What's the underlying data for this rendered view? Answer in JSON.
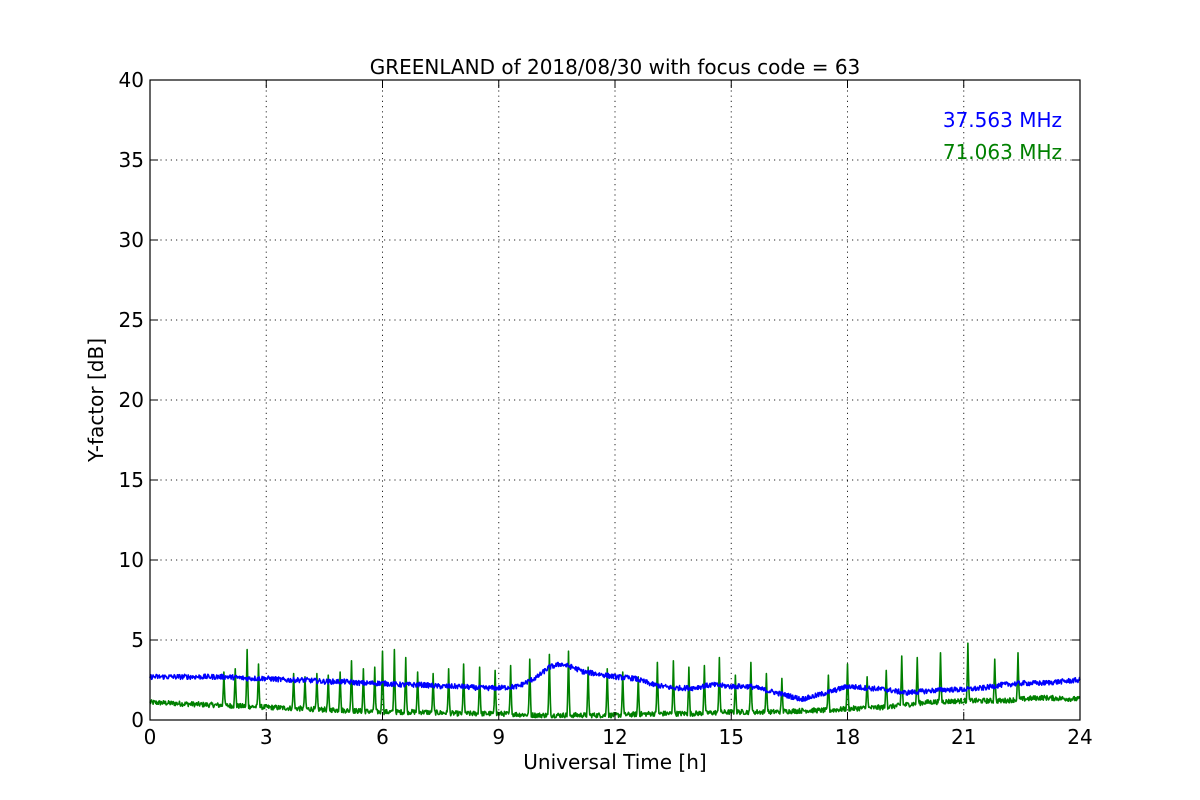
{
  "chart_data": {
    "type": "line",
    "title": "GREENLAND of 2018/08/30 with focus code = 63",
    "xlabel": "Universal Time [h]",
    "ylabel": "Y-factor [dB]",
    "xlim": [
      0,
      24
    ],
    "ylim": [
      0,
      40
    ],
    "xticks": [
      0,
      3,
      6,
      9,
      12,
      15,
      18,
      21,
      24
    ],
    "yticks": [
      0,
      5,
      10,
      15,
      20,
      25,
      30,
      35,
      40
    ],
    "grid": true,
    "legend_position": "top-right",
    "series": [
      {
        "name": "37.563 MHz",
        "color": "#0000ff",
        "x": [
          0,
          0.5,
          1,
          1.5,
          2,
          2.5,
          3,
          3.5,
          4,
          4.5,
          5,
          5.5,
          6,
          6.5,
          7,
          7.5,
          8,
          8.5,
          9,
          9.5,
          10,
          10.3,
          10.6,
          10.9,
          11.2,
          11.5,
          12,
          12.5,
          13,
          13.5,
          14,
          14.5,
          15,
          15.5,
          16,
          16.5,
          16.8,
          17,
          17.3,
          17.6,
          18,
          18.5,
          19,
          19.5,
          20,
          20.5,
          21,
          21.5,
          22,
          22.5,
          23,
          23.5,
          24
        ],
        "y": [
          2.7,
          2.7,
          2.7,
          2.7,
          2.7,
          2.6,
          2.6,
          2.5,
          2.5,
          2.4,
          2.4,
          2.3,
          2.3,
          2.2,
          2.2,
          2.1,
          2.1,
          2.0,
          2.0,
          2.1,
          2.7,
          3.3,
          3.5,
          3.3,
          3.0,
          2.9,
          2.7,
          2.6,
          2.2,
          2.0,
          2.0,
          2.2,
          2.1,
          2.1,
          1.8,
          1.5,
          1.3,
          1.4,
          1.6,
          1.8,
          2.1,
          2.0,
          1.9,
          1.7,
          1.8,
          1.9,
          1.9,
          2.0,
          2.2,
          2.3,
          2.3,
          2.4,
          2.5
        ]
      },
      {
        "name": "71.063 MHz",
        "color": "#008000",
        "x": [
          0,
          1,
          2,
          3,
          4,
          5,
          6,
          7,
          8,
          9,
          10,
          11,
          12,
          13,
          14,
          15,
          16,
          17,
          17.5,
          18,
          19,
          20,
          21,
          22,
          22.5,
          23,
          24
        ],
        "y": [
          1.1,
          1.0,
          0.9,
          0.8,
          0.7,
          0.6,
          0.5,
          0.5,
          0.4,
          0.4,
          0.3,
          0.3,
          0.3,
          0.4,
          0.4,
          0.5,
          0.5,
          0.6,
          0.6,
          0.7,
          0.8,
          1.1,
          1.2,
          1.2,
          1.3,
          1.4,
          1.3
        ],
        "spikes": [
          [
            1.9,
            3.0
          ],
          [
            2.2,
            3.2
          ],
          [
            2.5,
            4.4
          ],
          [
            2.8,
            3.5
          ],
          [
            3.7,
            2.9
          ],
          [
            4.0,
            2.7
          ],
          [
            4.3,
            2.9
          ],
          [
            4.6,
            2.8
          ],
          [
            4.9,
            3.0
          ],
          [
            5.2,
            3.7
          ],
          [
            5.5,
            3.2
          ],
          [
            5.8,
            3.3
          ],
          [
            6.0,
            4.3
          ],
          [
            6.3,
            4.4
          ],
          [
            6.6,
            3.9
          ],
          [
            6.9,
            3.0
          ],
          [
            7.3,
            2.9
          ],
          [
            7.7,
            3.2
          ],
          [
            8.1,
            3.5
          ],
          [
            8.5,
            3.3
          ],
          [
            8.9,
            3.1
          ],
          [
            9.3,
            3.4
          ],
          [
            9.8,
            3.8
          ],
          [
            10.3,
            4.1
          ],
          [
            10.8,
            4.3
          ],
          [
            11.3,
            3.3
          ],
          [
            11.8,
            3.2
          ],
          [
            12.2,
            3.0
          ],
          [
            12.6,
            2.7
          ],
          [
            13.1,
            3.6
          ],
          [
            13.5,
            3.7
          ],
          [
            13.9,
            3.3
          ],
          [
            14.3,
            3.4
          ],
          [
            14.7,
            3.9
          ],
          [
            15.1,
            2.8
          ],
          [
            15.5,
            3.6
          ],
          [
            15.9,
            2.9
          ],
          [
            16.3,
            2.6
          ],
          [
            17.5,
            2.8
          ],
          [
            18.0,
            3.5
          ],
          [
            18.5,
            2.7
          ],
          [
            19.0,
            3.1
          ],
          [
            19.4,
            4.0
          ],
          [
            19.8,
            3.9
          ],
          [
            20.4,
            4.2
          ],
          [
            21.1,
            4.8
          ],
          [
            21.8,
            3.8
          ],
          [
            22.4,
            4.2
          ]
        ]
      }
    ]
  }
}
